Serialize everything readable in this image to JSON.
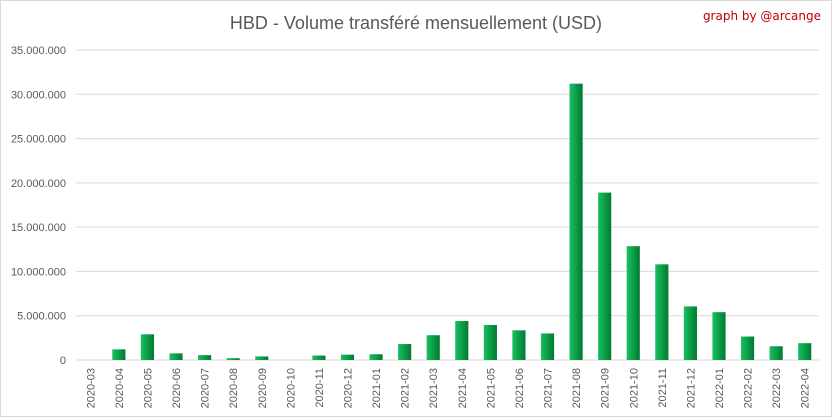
{
  "title": "HBD - Volume transféré mensuellement (USD)",
  "credit": "graph by @arcange",
  "colors": {
    "bar_light": "#19c060",
    "bar_dark": "#007a30",
    "grid": "#d9d9d9",
    "axis_text": "#595959",
    "credit": "#c00000"
  },
  "chart_data": {
    "type": "bar",
    "title": "HBD - Volume transféré mensuellement (USD)",
    "categories": [
      "2020-03",
      "2020-04",
      "2020-05",
      "2020-06",
      "2020-07",
      "2020-08",
      "2020-09",
      "2020-10",
      "2020-11",
      "2020-12",
      "2021-01",
      "2021-02",
      "2021-03",
      "2021-04",
      "2021-05",
      "2021-06",
      "2021-07",
      "2021-08",
      "2021-09",
      "2021-10",
      "2021-11",
      "2021-12",
      "2022-01",
      "2022-02",
      "2022-03",
      "2022-04"
    ],
    "values": [
      0,
      1200000,
      2900000,
      750000,
      550000,
      200000,
      400000,
      0,
      500000,
      600000,
      650000,
      1800000,
      2800000,
      4400000,
      3950000,
      3350000,
      3000000,
      31200000,
      18900000,
      12850000,
      10800000,
      6050000,
      5400000,
      2650000,
      1550000,
      1900000
    ],
    "ylim": [
      0,
      35000000
    ],
    "yticks": [
      0,
      5000000,
      10000000,
      15000000,
      20000000,
      25000000,
      30000000,
      35000000
    ],
    "ytick_labels": [
      "0",
      "5.000.000",
      "10.000.000",
      "15.000.000",
      "20.000.000",
      "25.000.000",
      "30.000.000",
      "35.000.000"
    ],
    "grid": true,
    "legend": "none"
  }
}
